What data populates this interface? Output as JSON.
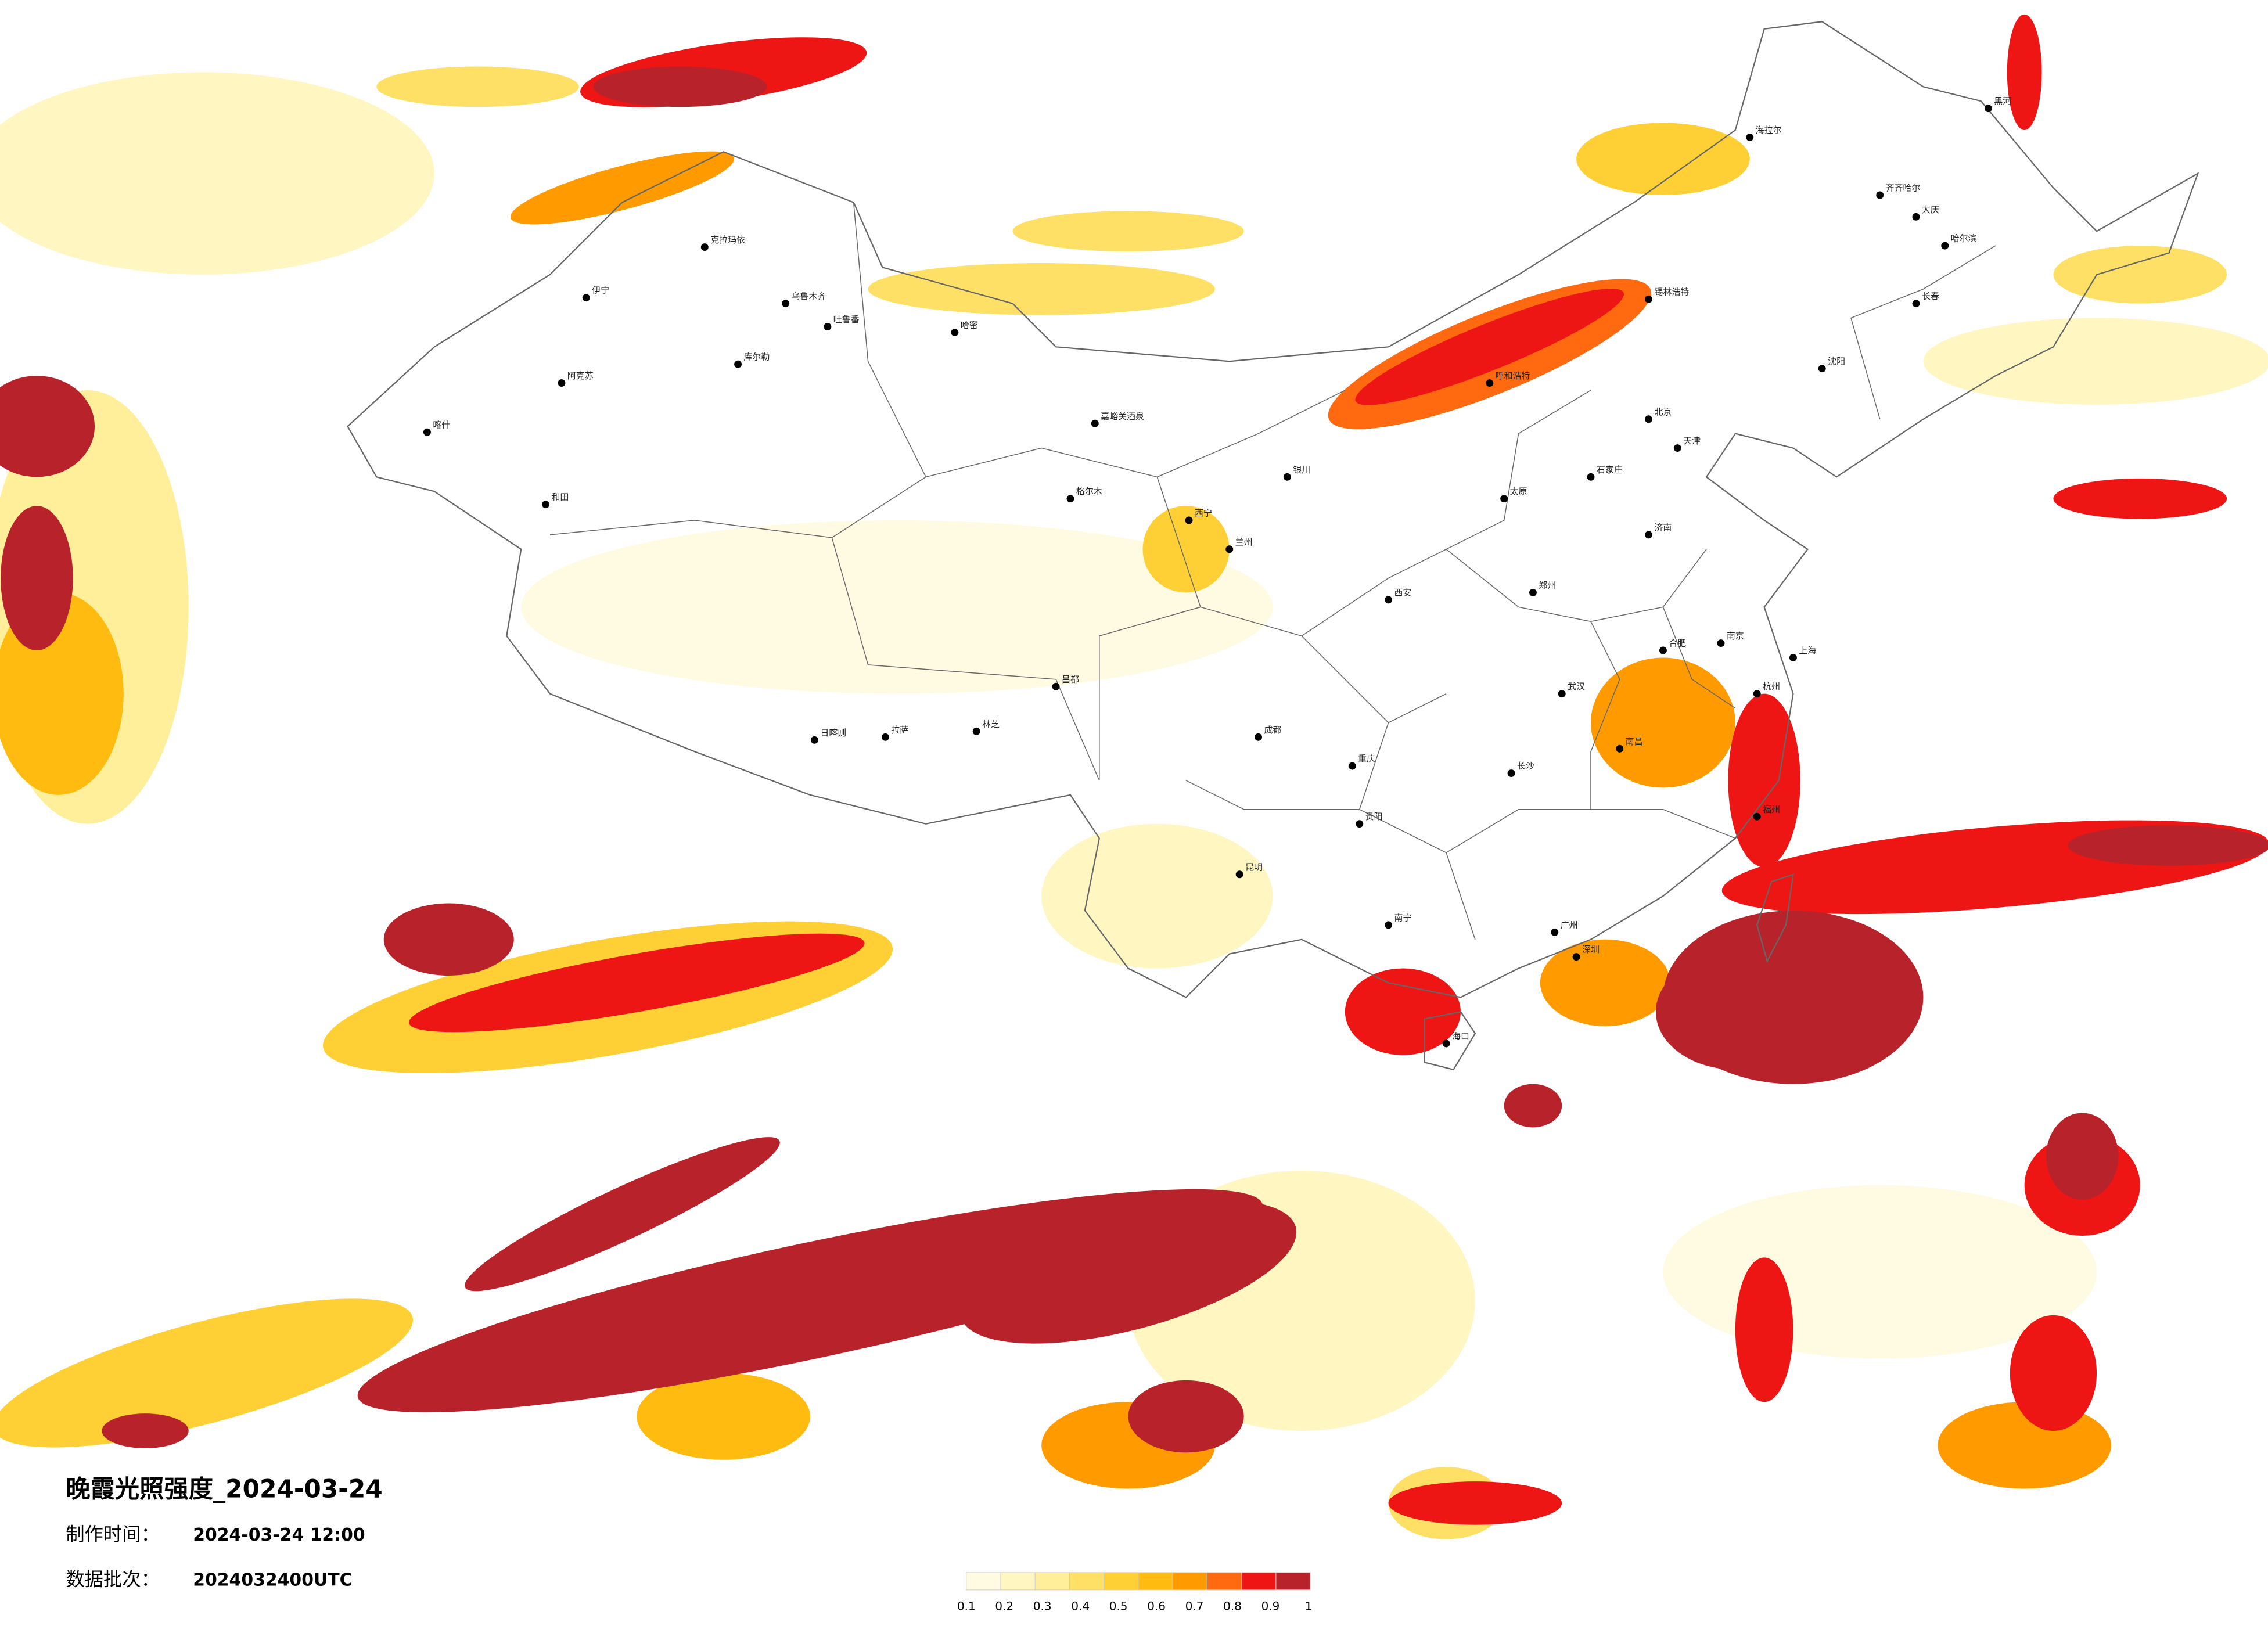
{
  "title": "晚霞光照强度_2024-03-24",
  "info": [
    {
      "label": "制作时间：",
      "value": "2024-03-24 12:00"
    },
    {
      "label": "数据批次：",
      "value": "2024032400UTC"
    }
  ],
  "legend": {
    "colors": [
      "#fffbe3",
      "#fff6c2",
      "#ffef9a",
      "#ffe066",
      "#ffd035",
      "#ffbb10",
      "#ff9a00",
      "#ff6a10",
      "#ee1515",
      "#b8232b"
    ],
    "ticks": [
      0.1,
      0.2,
      0.3,
      0.4,
      0.5,
      0.6,
      0.7,
      0.8,
      0.9,
      1
    ]
  },
  "cities": [
    "克拉玛依",
    "伊宁",
    "乌鲁木齐",
    "吐鲁番",
    "库尔勒",
    "阿克苏",
    "喀什",
    "和田",
    "哈密",
    "嘉峪关酒泉",
    "格尔木",
    "西宁",
    "兰州",
    "银川",
    "拉萨",
    "日喀则",
    "林芝",
    "昌都",
    "成都",
    "重庆",
    "贵阳",
    "昆明",
    "南宁",
    "广州",
    "深圳",
    "海口",
    "长沙",
    "武汉",
    "南昌",
    "福州",
    "杭州",
    "上海",
    "南京",
    "合肥",
    "郑州",
    "济南",
    "北京",
    "天津",
    "石家庄",
    "太原",
    "西安",
    "呼和浩特",
    "锡林浩特",
    "沈阳",
    "长春",
    "哈尔滨",
    "齐齐哈尔",
    "海拉尔",
    "大庆",
    "黑河"
  ]
}
